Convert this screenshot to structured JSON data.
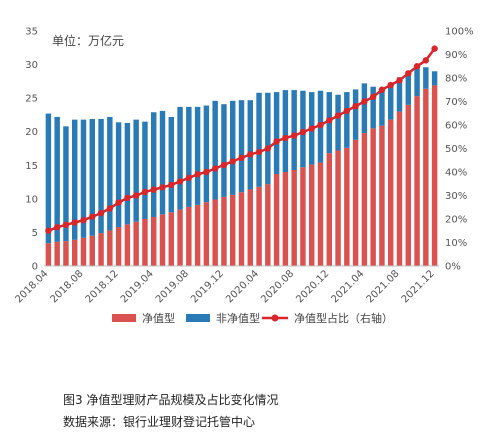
{
  "chart_data": {
    "type": "bar",
    "stacked": true,
    "unit_label": "单位：万亿元",
    "categories": [
      "2018.04",
      "2018.05",
      "2018.06",
      "2018.07",
      "2018.08",
      "2018.09",
      "2018.10",
      "2018.11",
      "2018.12",
      "2019.01",
      "2019.02",
      "2019.03",
      "2019.04",
      "2019.05",
      "2019.06",
      "2019.07",
      "2019.08",
      "2019.09",
      "2019.10",
      "2019.11",
      "2019.12",
      "2020.01",
      "2020.02",
      "2020.03",
      "2020.04",
      "2020.05",
      "2020.06",
      "2020.07",
      "2020.08",
      "2020.09",
      "2020.10",
      "2020.11",
      "2020.12",
      "2021.01",
      "2021.02",
      "2021.03",
      "2021.04",
      "2021.05",
      "2021.06",
      "2021.07",
      "2021.08",
      "2021.09",
      "2021.10",
      "2021.11",
      "2021.12"
    ],
    "x_tick_labels": [
      "2018.04",
      "2018.08",
      "2018.12",
      "2019.04",
      "2019.08",
      "2019.12",
      "2020.04",
      "2020.08",
      "2020.12",
      "2021.04",
      "2021.08",
      "2021.12"
    ],
    "series": [
      {
        "name": "净值型",
        "color": "#d9524f",
        "axis": "left",
        "values": [
          3.4,
          3.6,
          3.7,
          3.9,
          4.2,
          4.5,
          4.9,
          5.3,
          5.8,
          6.2,
          6.6,
          7.0,
          7.3,
          7.7,
          8.0,
          8.4,
          8.8,
          9.1,
          9.5,
          9.9,
          10.3,
          10.6,
          11.0,
          11.4,
          11.8,
          12.2,
          13.7,
          14.0,
          14.3,
          14.7,
          15.1,
          15.4,
          16.8,
          17.2,
          17.6,
          18.8,
          19.8,
          20.5,
          20.9,
          21.8,
          23.0,
          24.0,
          25.3,
          26.4,
          26.9
        ]
      },
      {
        "name": "非净值型",
        "color": "#2a7ab5",
        "axis": "left",
        "values": [
          19.3,
          18.6,
          17.1,
          17.9,
          17.6,
          17.4,
          17.0,
          16.9,
          15.6,
          15.1,
          15.2,
          14.5,
          15.6,
          15.4,
          14.2,
          15.3,
          14.9,
          14.6,
          14.4,
          14.7,
          13.8,
          14.0,
          13.7,
          13.3,
          14.0,
          13.6,
          12.2,
          12.2,
          11.9,
          11.4,
          10.8,
          10.7,
          9.1,
          8.3,
          8.3,
          7.5,
          7.4,
          6.2,
          5.2,
          5.5,
          5.1,
          4.6,
          4.4,
          3.2,
          2.1
        ]
      },
      {
        "name": "净值型占比（右轴）",
        "color": "#d9262b",
        "axis": "right",
        "type": "line",
        "values": [
          15,
          16.5,
          17.5,
          18.5,
          19.5,
          21,
          22.5,
          24.5,
          27,
          29,
          30,
          31.5,
          32.5,
          33.5,
          34.5,
          36,
          37.5,
          39,
          40,
          41.5,
          43,
          44.5,
          46,
          47.5,
          48.5,
          50,
          53,
          54.5,
          55.5,
          57,
          58.5,
          60,
          62,
          64,
          66,
          68,
          70,
          72,
          75,
          77,
          79,
          82,
          85,
          87.5,
          92.5
        ]
      }
    ],
    "y_left": {
      "min": 0,
      "max": 35,
      "ticks": [
        0,
        5,
        10,
        15,
        20,
        25,
        30,
        35
      ]
    },
    "y_right": {
      "min": 0,
      "max": 100,
      "ticks": [
        "0%",
        "10%",
        "20%",
        "30%",
        "40%",
        "50%",
        "60%",
        "70%",
        "80%",
        "90%",
        "100%"
      ]
    },
    "legend": [
      {
        "label": "净值型",
        "kind": "bar",
        "color": "#d9524f"
      },
      {
        "label": "非净值型",
        "kind": "bar",
        "color": "#2a7ab5"
      },
      {
        "label": "净值型占比（右轴）",
        "kind": "line",
        "color": "#d9262b"
      }
    ],
    "grid": false,
    "legend_position": "bottom"
  },
  "caption": {
    "title": "图3 净值型理财产品规模及占比变化情况",
    "source": "数据来源：银行业理财登记托管中心"
  }
}
